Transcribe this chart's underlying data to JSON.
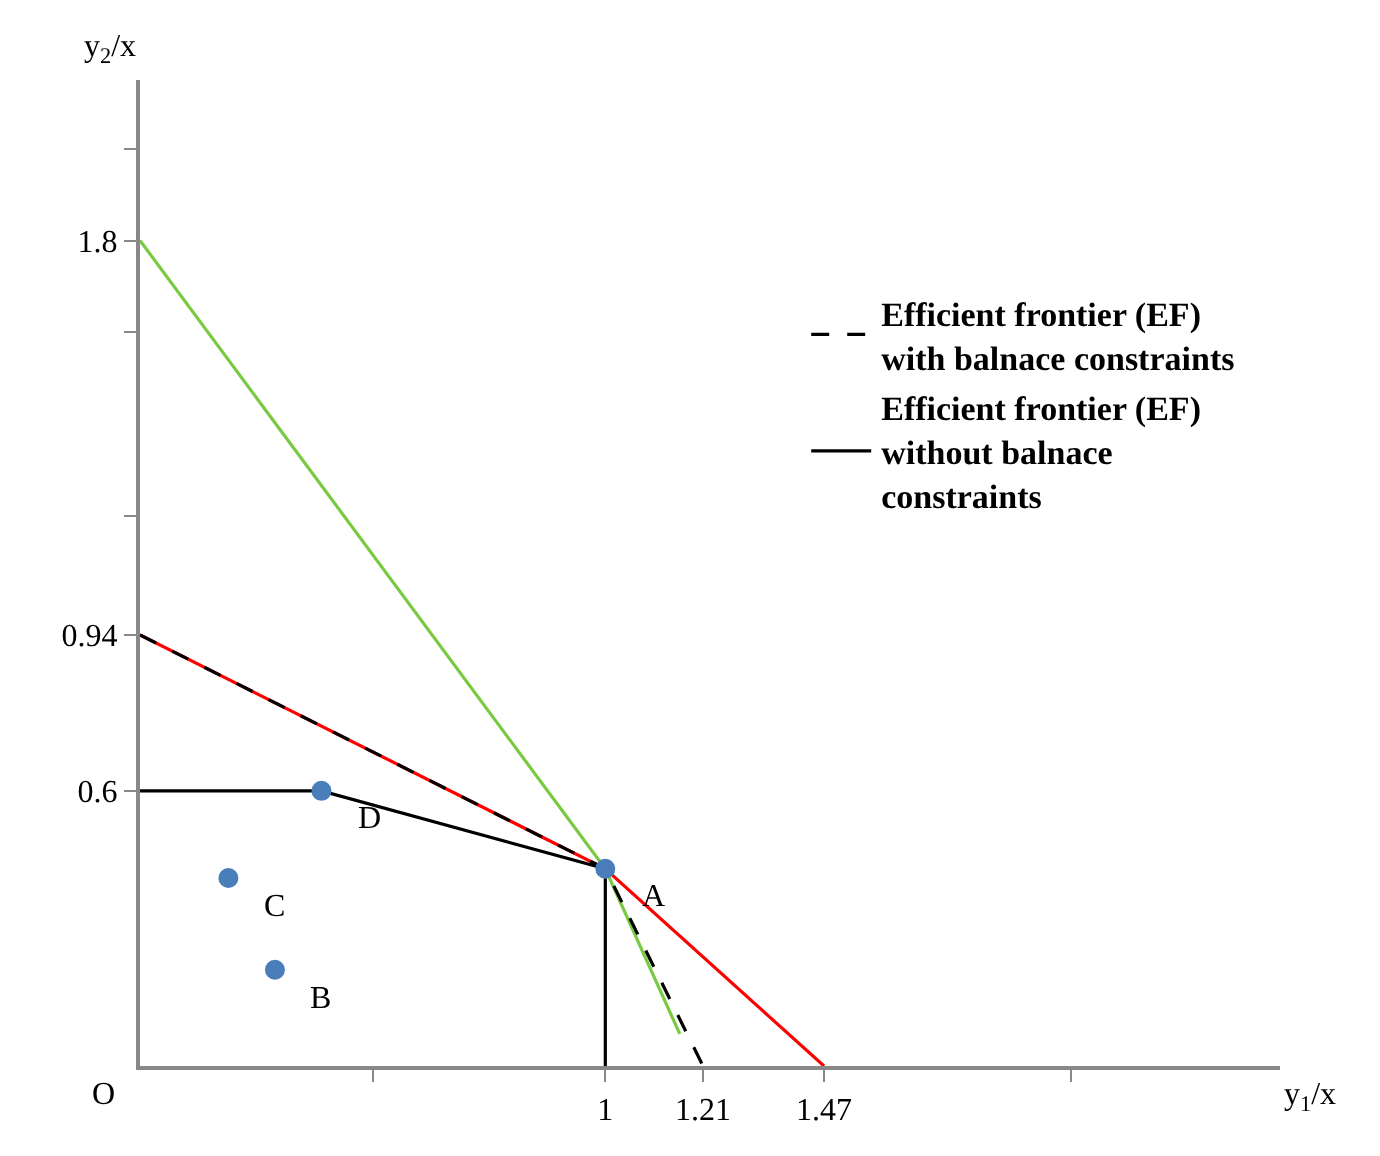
{
  "chart_data": {
    "type": "line",
    "xlabel": "y$_{1}$/x",
    "ylabel": "y$_{2}$/x",
    "xlim": [
      0,
      2.45
    ],
    "ylim": [
      0,
      2.15
    ],
    "xticks": [
      {
        "value": 0.5,
        "label": null
      },
      1,
      1.21,
      1.47,
      {
        "value": 2,
        "label": null
      }
    ],
    "yticks": [
      0.6,
      0.94,
      {
        "value": 1.2,
        "label": null
      },
      {
        "value": 1.6,
        "label": null
      },
      1.8,
      {
        "value": 2.0,
        "label": null
      }
    ],
    "legend": "right",
    "marker": "none",
    "series": [
      {
        "color": "#7ac943",
        "x": [
          0,
          1,
          1.16
        ],
        "values": [
          1.8,
          0.43,
          0.07
        ]
      },
      {
        "color": "#ff0000",
        "x": [
          0,
          1,
          1.47
        ],
        "values": [
          0.94,
          0.43,
          0
        ]
      },
      {
        "name": "Efficient frontier (EF) without balnace constraints",
        "color": "#000000",
        "line_style": "solid",
        "x": [
          0,
          0.39,
          1,
          1
        ],
        "values": [
          0.6,
          0.6,
          0.43,
          0
        ]
      },
      {
        "name": "Efficient frontier (EF) with balnace constraints",
        "color": "#000000",
        "line_style": "dashed",
        "x": [
          0,
          1,
          1.21
        ],
        "values": [
          0.94,
          0.43,
          0
        ]
      },
      {
        "type": "scatter",
        "color": "#4a7ebb",
        "marker": "circle",
        "x": [
          1,
          0.29,
          0.19,
          0.39
        ],
        "values": [
          0.43,
          0.21,
          0.41,
          0.6
        ]
      }
    ],
    "annotations": [
      {
        "text": "A",
        "x": 1,
        "y": 0.43
      },
      {
        "text": "B",
        "x": 0.29,
        "y": 0.21
      },
      {
        "text": "C",
        "x": 0.19,
        "y": 0.41
      },
      {
        "text": "D",
        "x": 0.39,
        "y": 0.6
      },
      "O"
    ]
  }
}
